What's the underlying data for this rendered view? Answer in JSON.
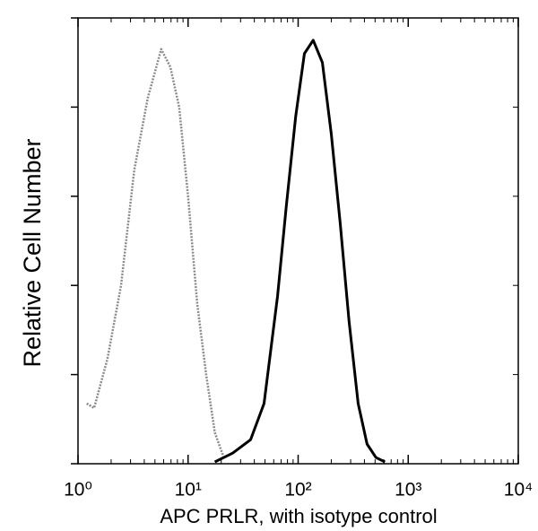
{
  "chart_data": {
    "type": "line",
    "x_label": "APC PRLR, with isotype control",
    "y_label": "Relative Cell Number",
    "xscale": "log",
    "xlim": [
      1,
      10000
    ],
    "xticks": [
      {
        "value": 1,
        "label": "10⁰"
      },
      {
        "value": 10,
        "label": "10¹"
      },
      {
        "value": 100,
        "label": "10²"
      },
      {
        "value": 1000,
        "label": "10³"
      },
      {
        "value": 10000,
        "label": "10⁴"
      }
    ],
    "ylim": [
      0,
      100
    ],
    "yticks": [
      0,
      20,
      40,
      60,
      80,
      100
    ],
    "series": [
      {
        "color": "#8a8a8a",
        "x": [
          1.2,
          1.4,
          1.85,
          2.46,
          3.25,
          4.3,
          5.7,
          6.9,
          8.3,
          10,
          12.1,
          14.6,
          17.5,
          21.1
        ],
        "values": [
          13.5,
          12.5,
          23.5,
          40,
          66,
          82,
          93,
          89,
          80,
          60,
          36,
          20,
          7,
          1.4
        ]
      },
      {
        "color": "#000000",
        "x": [
          17.5,
          25.5,
          37,
          49,
          65,
          78,
          95,
          114,
          137,
          166,
          200,
          241,
          290,
          351,
          423,
          509,
          615
        ],
        "values": [
          0.4,
          2.4,
          5.4,
          13.5,
          37.6,
          57.7,
          77.9,
          92,
          95,
          90,
          74,
          54,
          32,
          13.5,
          4.4,
          1.4,
          0.4
        ]
      }
    ]
  }
}
